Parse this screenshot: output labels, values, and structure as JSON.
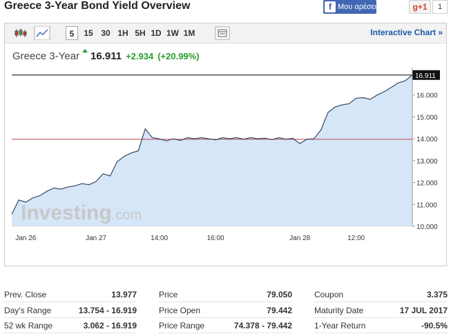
{
  "header": {
    "title": "Greece 3-Year Bond Yield Overview",
    "like": "Μου αρέσει",
    "gplus": "g+1",
    "gplus_count": "1"
  },
  "toolbar": {
    "intervals": [
      "5",
      "15",
      "30",
      "1H",
      "5H",
      "1D",
      "1W",
      "1M"
    ],
    "selected": "5",
    "link": "Interactive Chart »"
  },
  "quote": {
    "name": "Greece 3-Year",
    "price": "16.911",
    "change": "+2.934",
    "change_pct": "(+20.99%)"
  },
  "chart_data": {
    "type": "area",
    "categories": [
      null,
      null,
      "Jan 26",
      null,
      null,
      null,
      null,
      null,
      null,
      null,
      null,
      null,
      "Jan 27",
      null,
      null,
      null,
      null,
      null,
      null,
      null,
      null,
      "14:00",
      null,
      null,
      null,
      null,
      null,
      null,
      null,
      "16:00",
      null,
      null,
      null,
      null,
      null,
      null,
      null,
      null,
      null,
      null,
      null,
      "Jan 28",
      null,
      null,
      null,
      null,
      null,
      null,
      null,
      "12:00",
      null,
      null,
      null,
      null,
      null,
      null,
      null,
      null
    ],
    "values": [
      10.55,
      11.2,
      11.1,
      11.3,
      11.4,
      11.6,
      11.75,
      11.7,
      11.8,
      11.85,
      11.95,
      11.9,
      12.05,
      12.4,
      12.3,
      12.95,
      13.2,
      13.35,
      13.45,
      14.45,
      14.05,
      14.0,
      13.9,
      14.0,
      13.92,
      14.05,
      14.0,
      14.05,
      14.0,
      13.95,
      14.05,
      14.0,
      14.05,
      13.98,
      14.05,
      14.0,
      14.03,
      13.96,
      14.05,
      13.98,
      14.02,
      13.78,
      13.98,
      14.0,
      14.4,
      15.2,
      15.45,
      15.55,
      15.6,
      15.85,
      15.88,
      15.8,
      16.0,
      16.15,
      16.35,
      16.55,
      16.65,
      16.911
    ],
    "color": "#3a4760",
    "fill": "#d5e6f8",
    "ylim": [
      10,
      17.25
    ],
    "yticks": [
      {
        "value": 10,
        "label": "10.000"
      },
      {
        "value": 11,
        "label": "11.000"
      },
      {
        "value": 12,
        "label": "12.000"
      },
      {
        "value": 13,
        "label": "13.000"
      },
      {
        "value": 14,
        "label": "14.000"
      },
      {
        "value": 15,
        "label": "15.000"
      },
      {
        "value": 16,
        "label": "16.000"
      }
    ],
    "grid": false,
    "reference_line": {
      "value": 13.977,
      "color": "#b5474b"
    },
    "last_label": "16.911",
    "watermark": [
      "Investing",
      ".com"
    ]
  },
  "stats": [
    [
      [
        "Prev. Close",
        "13.977"
      ],
      [
        "Day's Range",
        "13.754 - 16.919"
      ],
      [
        "52 wk Range",
        "3.062 - 16.919"
      ]
    ],
    [
      [
        "Price",
        "79.050"
      ],
      [
        "Price Open",
        "79.442"
      ],
      [
        "Price Range",
        "74.378 - 79.442"
      ]
    ],
    [
      [
        "Coupon",
        "3.375"
      ],
      [
        "Maturity Date",
        "17 JUL 2017"
      ],
      [
        "1-Year Return",
        "-90.5%"
      ]
    ]
  ]
}
